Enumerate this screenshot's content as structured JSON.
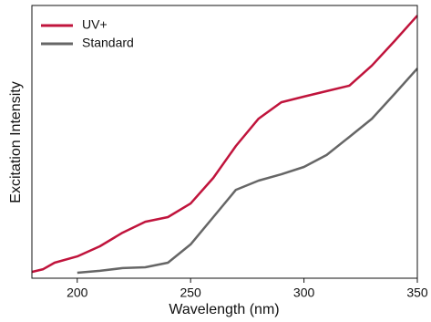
{
  "chart_data": {
    "type": "line",
    "xlabel": "Wavelength (nm)",
    "ylabel": "Excitation Intensity",
    "x": [
      180,
      185,
      190,
      200,
      210,
      220,
      230,
      240,
      250,
      260,
      270,
      280,
      290,
      300,
      310,
      320,
      330,
      340,
      350
    ],
    "series": [
      {
        "name": "UV+",
        "color": "#c0143c",
        "values": [
          2.3,
          3.3,
          5.7,
          8,
          11.7,
          16.7,
          20.7,
          22.4,
          27.4,
          36.8,
          48.5,
          58.5,
          64.5,
          66.6,
          68.6,
          70.6,
          78,
          87,
          96.3
        ]
      },
      {
        "name": "Standard",
        "color": "#666666",
        "values": [
          null,
          null,
          null,
          2,
          2.7,
          3.7,
          4,
          5.7,
          12.4,
          22.4,
          32.4,
          35.8,
          38.1,
          40.8,
          45.2,
          51.8,
          58.5,
          67.6,
          76.9
        ]
      }
    ],
    "xlim": [
      180,
      350
    ],
    "xticks": [
      200,
      250,
      300,
      350
    ],
    "ylim": [
      0,
      100
    ],
    "legend": "upper left"
  }
}
